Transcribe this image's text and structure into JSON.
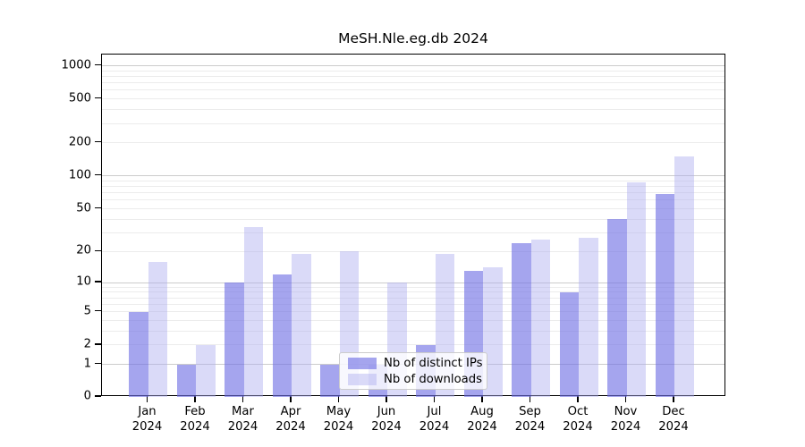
{
  "chart_data": {
    "type": "bar",
    "title": "MeSH.Nle.eg.db 2024",
    "categories": [
      "Jan",
      "Feb",
      "Mar",
      "Apr",
      "May",
      "Jun",
      "Jul",
      "Aug",
      "Sep",
      "Oct",
      "Nov",
      "Dec"
    ],
    "xlabel_second_line": "2024",
    "series": [
      {
        "name": "Nb of distinct IPs",
        "color": "rgba(109,109,228,0.62)",
        "values": [
          5,
          1,
          10,
          12,
          1,
          1,
          2,
          13,
          24,
          8,
          40,
          68
        ]
      },
      {
        "name": "Nb of downloads",
        "color": "rgba(173,173,240,0.45)",
        "values": [
          16,
          2,
          34,
          19,
          20,
          10,
          19,
          14,
          26,
          27,
          88,
          150
        ]
      }
    ],
    "xlabel": "",
    "ylabel": "",
    "yscale": "log1p",
    "yticks": [
      0,
      1,
      2,
      5,
      10,
      20,
      50,
      100,
      200,
      500,
      1000
    ],
    "minor_gridlines": [
      2,
      3,
      4,
      5,
      6,
      7,
      8,
      9,
      20,
      30,
      40,
      50,
      60,
      70,
      80,
      90,
      200,
      300,
      400,
      500,
      600,
      700,
      800,
      900
    ],
    "major_gridlines": [
      1,
      10,
      100,
      1000
    ],
    "ylim": [
      0,
      1280
    ],
    "grid": true,
    "legend_position": "inside-bottom-center",
    "colors": {
      "ips_bar": "rgba(109,109,228,0.62)",
      "downloads_bar": "rgba(173,173,240,0.45)",
      "major_grid": "#cccccc",
      "minor_grid": "#ececec",
      "axis": "#000000",
      "background": "#ffffff"
    }
  }
}
